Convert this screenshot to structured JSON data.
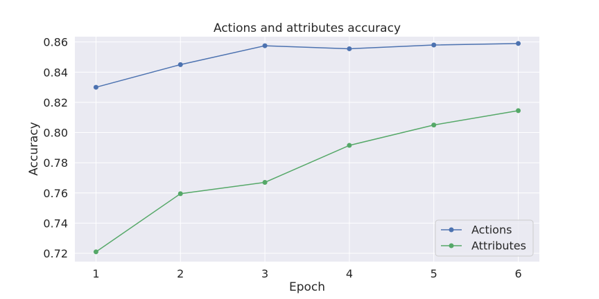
{
  "chart_data": {
    "type": "line",
    "title": "Actions and attributes accuracy",
    "xlabel": "Epoch",
    "ylabel": "Accuracy",
    "x": [
      1,
      2,
      3,
      4,
      5,
      6
    ],
    "xlim": [
      0.75,
      6.25
    ],
    "ylim": [
      0.7145,
      0.8635
    ],
    "yticks": [
      0.72,
      0.74,
      0.76,
      0.78,
      0.8,
      0.82,
      0.84,
      0.86
    ],
    "ytick_labels": [
      "0.72",
      "0.74",
      "0.76",
      "0.78",
      "0.80",
      "0.82",
      "0.84",
      "0.86"
    ],
    "xtick_labels": [
      "1",
      "2",
      "3",
      "4",
      "5",
      "6"
    ],
    "grid": true,
    "legend_position": "lower-right",
    "series": [
      {
        "name": "Actions",
        "color": "#4c72b0",
        "values": [
          0.83,
          0.845,
          0.8575,
          0.8555,
          0.858,
          0.859
        ]
      },
      {
        "name": "Attributes",
        "color": "#55a868",
        "values": [
          0.721,
          0.7595,
          0.767,
          0.7915,
          0.805,
          0.8145
        ]
      }
    ],
    "colors": {
      "background": "#eaeaf2",
      "grid": "#ffffff"
    }
  }
}
